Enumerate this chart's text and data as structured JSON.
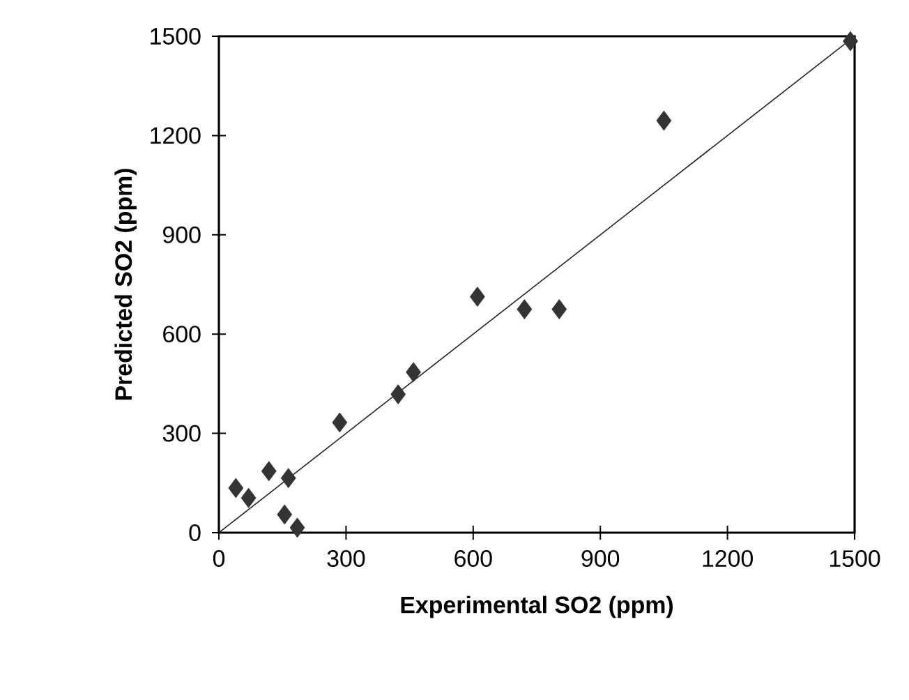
{
  "chart_data": {
    "type": "scatter",
    "xlabel": "Experimental SO2  (ppm)",
    "ylabel": "Predicted SO2  (ppm)",
    "xlim": [
      0,
      1500
    ],
    "ylim": [
      0,
      1500
    ],
    "xticks": [
      0,
      300,
      600,
      900,
      1200,
      1500
    ],
    "yticks": [
      0,
      300,
      600,
      900,
      1200,
      1500
    ],
    "grid": false,
    "marker": "diamond",
    "series": [
      {
        "color": "#333333",
        "x": [
          40,
          70,
          118,
          164,
          155,
          185,
          285,
          423,
          459,
          610,
          721,
          803,
          1050,
          1490
        ],
        "values": [
          135,
          105,
          186,
          165,
          55,
          15,
          333,
          418,
          485,
          713,
          675,
          675,
          1245,
          1485
        ]
      },
      {
        "type": "line",
        "color": "#222222",
        "marker": "none",
        "line_style": "solid",
        "x": [
          0,
          1500
        ],
        "values": [
          0,
          1500
        ]
      }
    ]
  }
}
